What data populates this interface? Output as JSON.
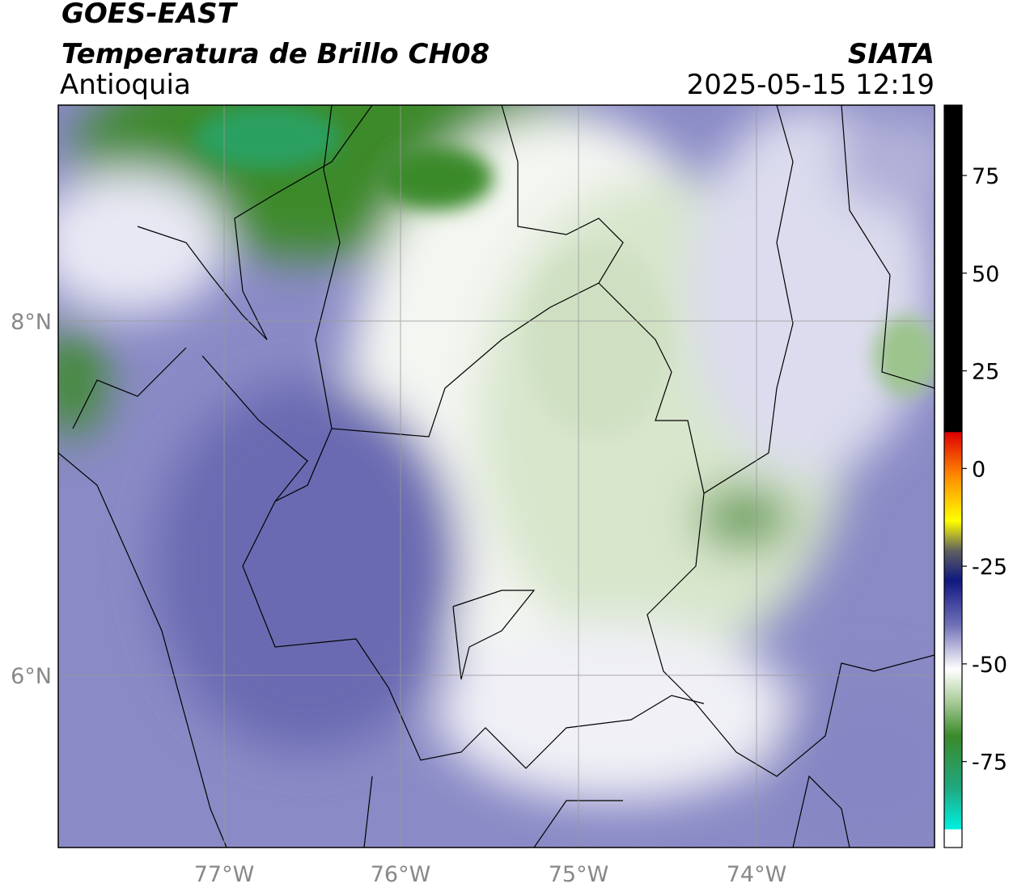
{
  "header": {
    "title": "GOES-EAST",
    "subtitle": "Temperatura de Brillo CH08",
    "region": "Antioquia",
    "source": "SIATA",
    "datetime": "2025-05-15 12:19"
  },
  "map": {
    "lat_labels": [
      "8°N",
      "6°N"
    ],
    "lon_labels": [
      "77°W",
      "76°W",
      "75°W",
      "74°W"
    ]
  },
  "colorbar": {
    "vlim": [
      -97,
      93
    ],
    "ticks": [
      75,
      50,
      25,
      0,
      -25,
      -50,
      -75
    ]
  }
}
